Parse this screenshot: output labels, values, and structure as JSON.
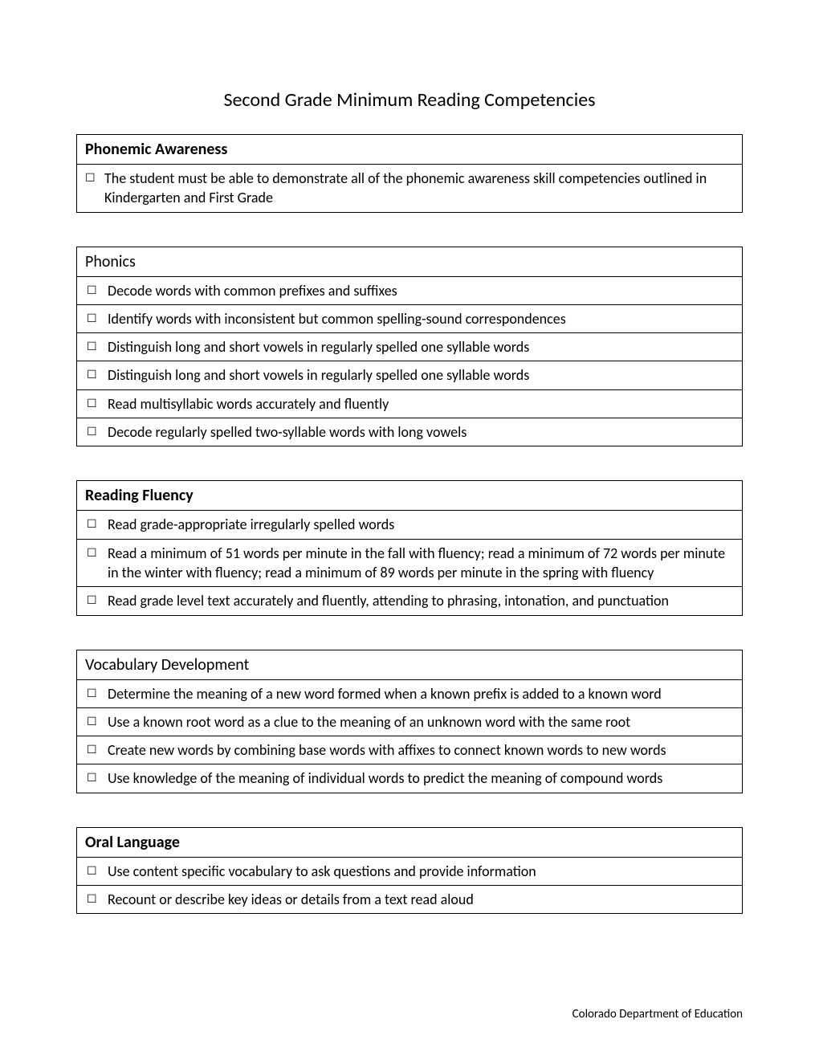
{
  "title": "Second Grade Minimum Reading Competencies",
  "checkbox_glyph": "☐",
  "sections": [
    {
      "header": "Phonemic Awareness",
      "bold": true,
      "rows": [
        {
          "type": "inline",
          "text": "The student must be able to demonstrate all of the phonemic awareness skill competencies outlined in Kindergarten and First Grade"
        }
      ]
    },
    {
      "header": "Phonics",
      "bold": false,
      "rows": [
        {
          "type": "hanging",
          "text": "Decode words with common prefixes and suffixes"
        },
        {
          "type": "hanging",
          "text": "Identify words with inconsistent but common spelling-sound correspondences"
        },
        {
          "type": "hanging",
          "text": "Distinguish long and short vowels in regularly spelled one syllable words"
        },
        {
          "type": "hanging",
          "text": "Distinguish long and short vowels in regularly spelled one syllable words"
        },
        {
          "type": "hanging",
          "text": "Read multisyllabic words accurately and fluently"
        },
        {
          "type": "hanging",
          "text": "Decode regularly spelled two-syllable words with long vowels"
        }
      ]
    },
    {
      "header": "Reading Fluency",
      "bold": true,
      "rows": [
        {
          "type": "hanging",
          "text": "Read grade-appropriate irregularly spelled words"
        },
        {
          "type": "hanging",
          "text": "Read a minimum of 51 words per minute in the fall with fluency; read a minimum of 72 words per minute in the winter with fluency; read a minimum of 89 words per minute in the spring with fluency"
        },
        {
          "type": "hanging",
          "text": "Read grade level text accurately and fluently, attending to phrasing, intonation, and punctuation"
        }
      ]
    },
    {
      "header": "Vocabulary Development",
      "bold": false,
      "rows": [
        {
          "type": "hanging",
          "text": "Determine the meaning of a new word formed when a known prefix is added to a known word"
        },
        {
          "type": "hanging",
          "text": "Use a known root word as a clue to the meaning of an unknown word with the same root"
        },
        {
          "type": "hanging",
          "text": "Create new words by combining base words with affixes to connect known words to new words"
        },
        {
          "type": "hanging",
          "text": "Use knowledge of the meaning of individual words to predict the meaning of compound words"
        }
      ]
    },
    {
      "header": "Oral Language",
      "bold": true,
      "rows": [
        {
          "type": "hanging",
          "text": "Use content specific vocabulary to ask questions and provide information"
        },
        {
          "type": "hanging",
          "text": "Recount or describe key ideas or details from a text read aloud"
        }
      ]
    }
  ],
  "footer": "Colorado Department of Education"
}
